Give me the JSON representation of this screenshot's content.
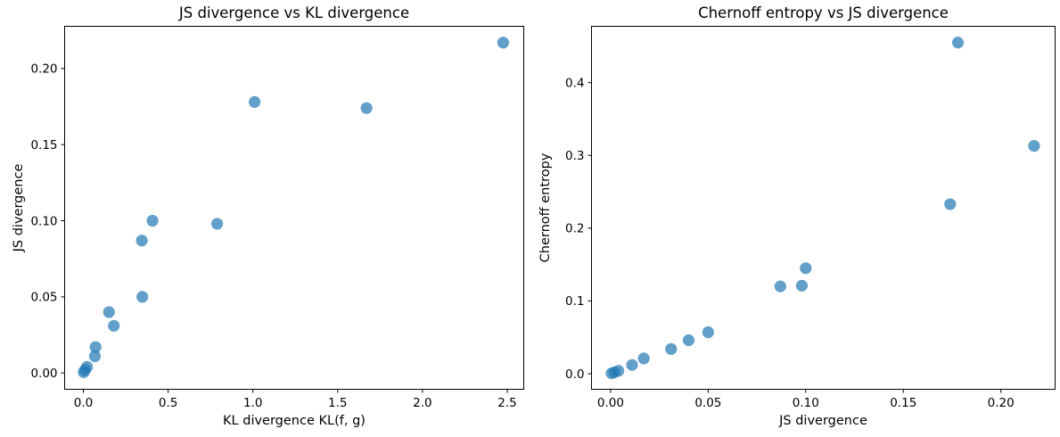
{
  "figure": {
    "background": "#ffffff",
    "text_color": "#000000",
    "spine_color": "#000000"
  },
  "chart_data": [
    {
      "type": "scatter",
      "title": "JS divergence vs KL divergence",
      "xlabel": "KL divergence KL(f, g)",
      "ylabel": "JS divergence",
      "xlim": [
        -0.113,
        2.6
      ],
      "ylim": [
        -0.011,
        0.228
      ],
      "xticks": [
        0.0,
        0.5,
        1.0,
        1.5,
        2.0,
        2.5
      ],
      "xtick_labels": [
        "0.0",
        "0.5",
        "1.0",
        "1.5",
        "2.0",
        "2.5"
      ],
      "yticks": [
        0.0,
        0.05,
        0.1,
        0.15,
        0.2
      ],
      "ytick_labels": [
        "0.00",
        "0.05",
        "0.10",
        "0.15",
        "0.20"
      ],
      "grid": false,
      "legend": null,
      "marker": {
        "color": "#1f77b4",
        "alpha": 0.7,
        "radius_px": 6.6
      },
      "x": [
        0.002,
        0.01,
        0.022,
        0.068,
        0.072,
        0.151,
        0.18,
        0.345,
        0.348,
        0.408,
        0.789,
        1.01,
        1.67,
        2.476
      ],
      "y": [
        0.0005,
        0.002,
        0.004,
        0.011,
        0.017,
        0.04,
        0.031,
        0.087,
        0.05,
        0.1,
        0.098,
        0.178,
        0.174,
        0.217
      ]
    },
    {
      "type": "scatter",
      "title": "Chernoff entropy vs JS divergence",
      "xlabel": "JS divergence",
      "ylabel": "Chernoff entropy",
      "xlim": [
        -0.01,
        0.228
      ],
      "ylim": [
        -0.022,
        0.478
      ],
      "xticks": [
        0.0,
        0.05,
        0.1,
        0.15,
        0.2
      ],
      "xtick_labels": [
        "0.00",
        "0.05",
        "0.10",
        "0.15",
        "0.20"
      ],
      "yticks": [
        0.0,
        0.1,
        0.2,
        0.3,
        0.4
      ],
      "ytick_labels": [
        "0.0",
        "0.1",
        "0.2",
        "0.3",
        "0.4"
      ],
      "grid": false,
      "legend": null,
      "marker": {
        "color": "#1f77b4",
        "alpha": 0.7,
        "radius_px": 6.6
      },
      "x": [
        0.0005,
        0.002,
        0.004,
        0.011,
        0.017,
        0.04,
        0.031,
        0.087,
        0.05,
        0.1,
        0.098,
        0.178,
        0.174,
        0.217
      ],
      "y": [
        0.0005,
        0.002,
        0.004,
        0.012,
        0.021,
        0.046,
        0.034,
        0.12,
        0.057,
        0.145,
        0.121,
        0.455,
        0.233,
        0.313
      ]
    }
  ]
}
